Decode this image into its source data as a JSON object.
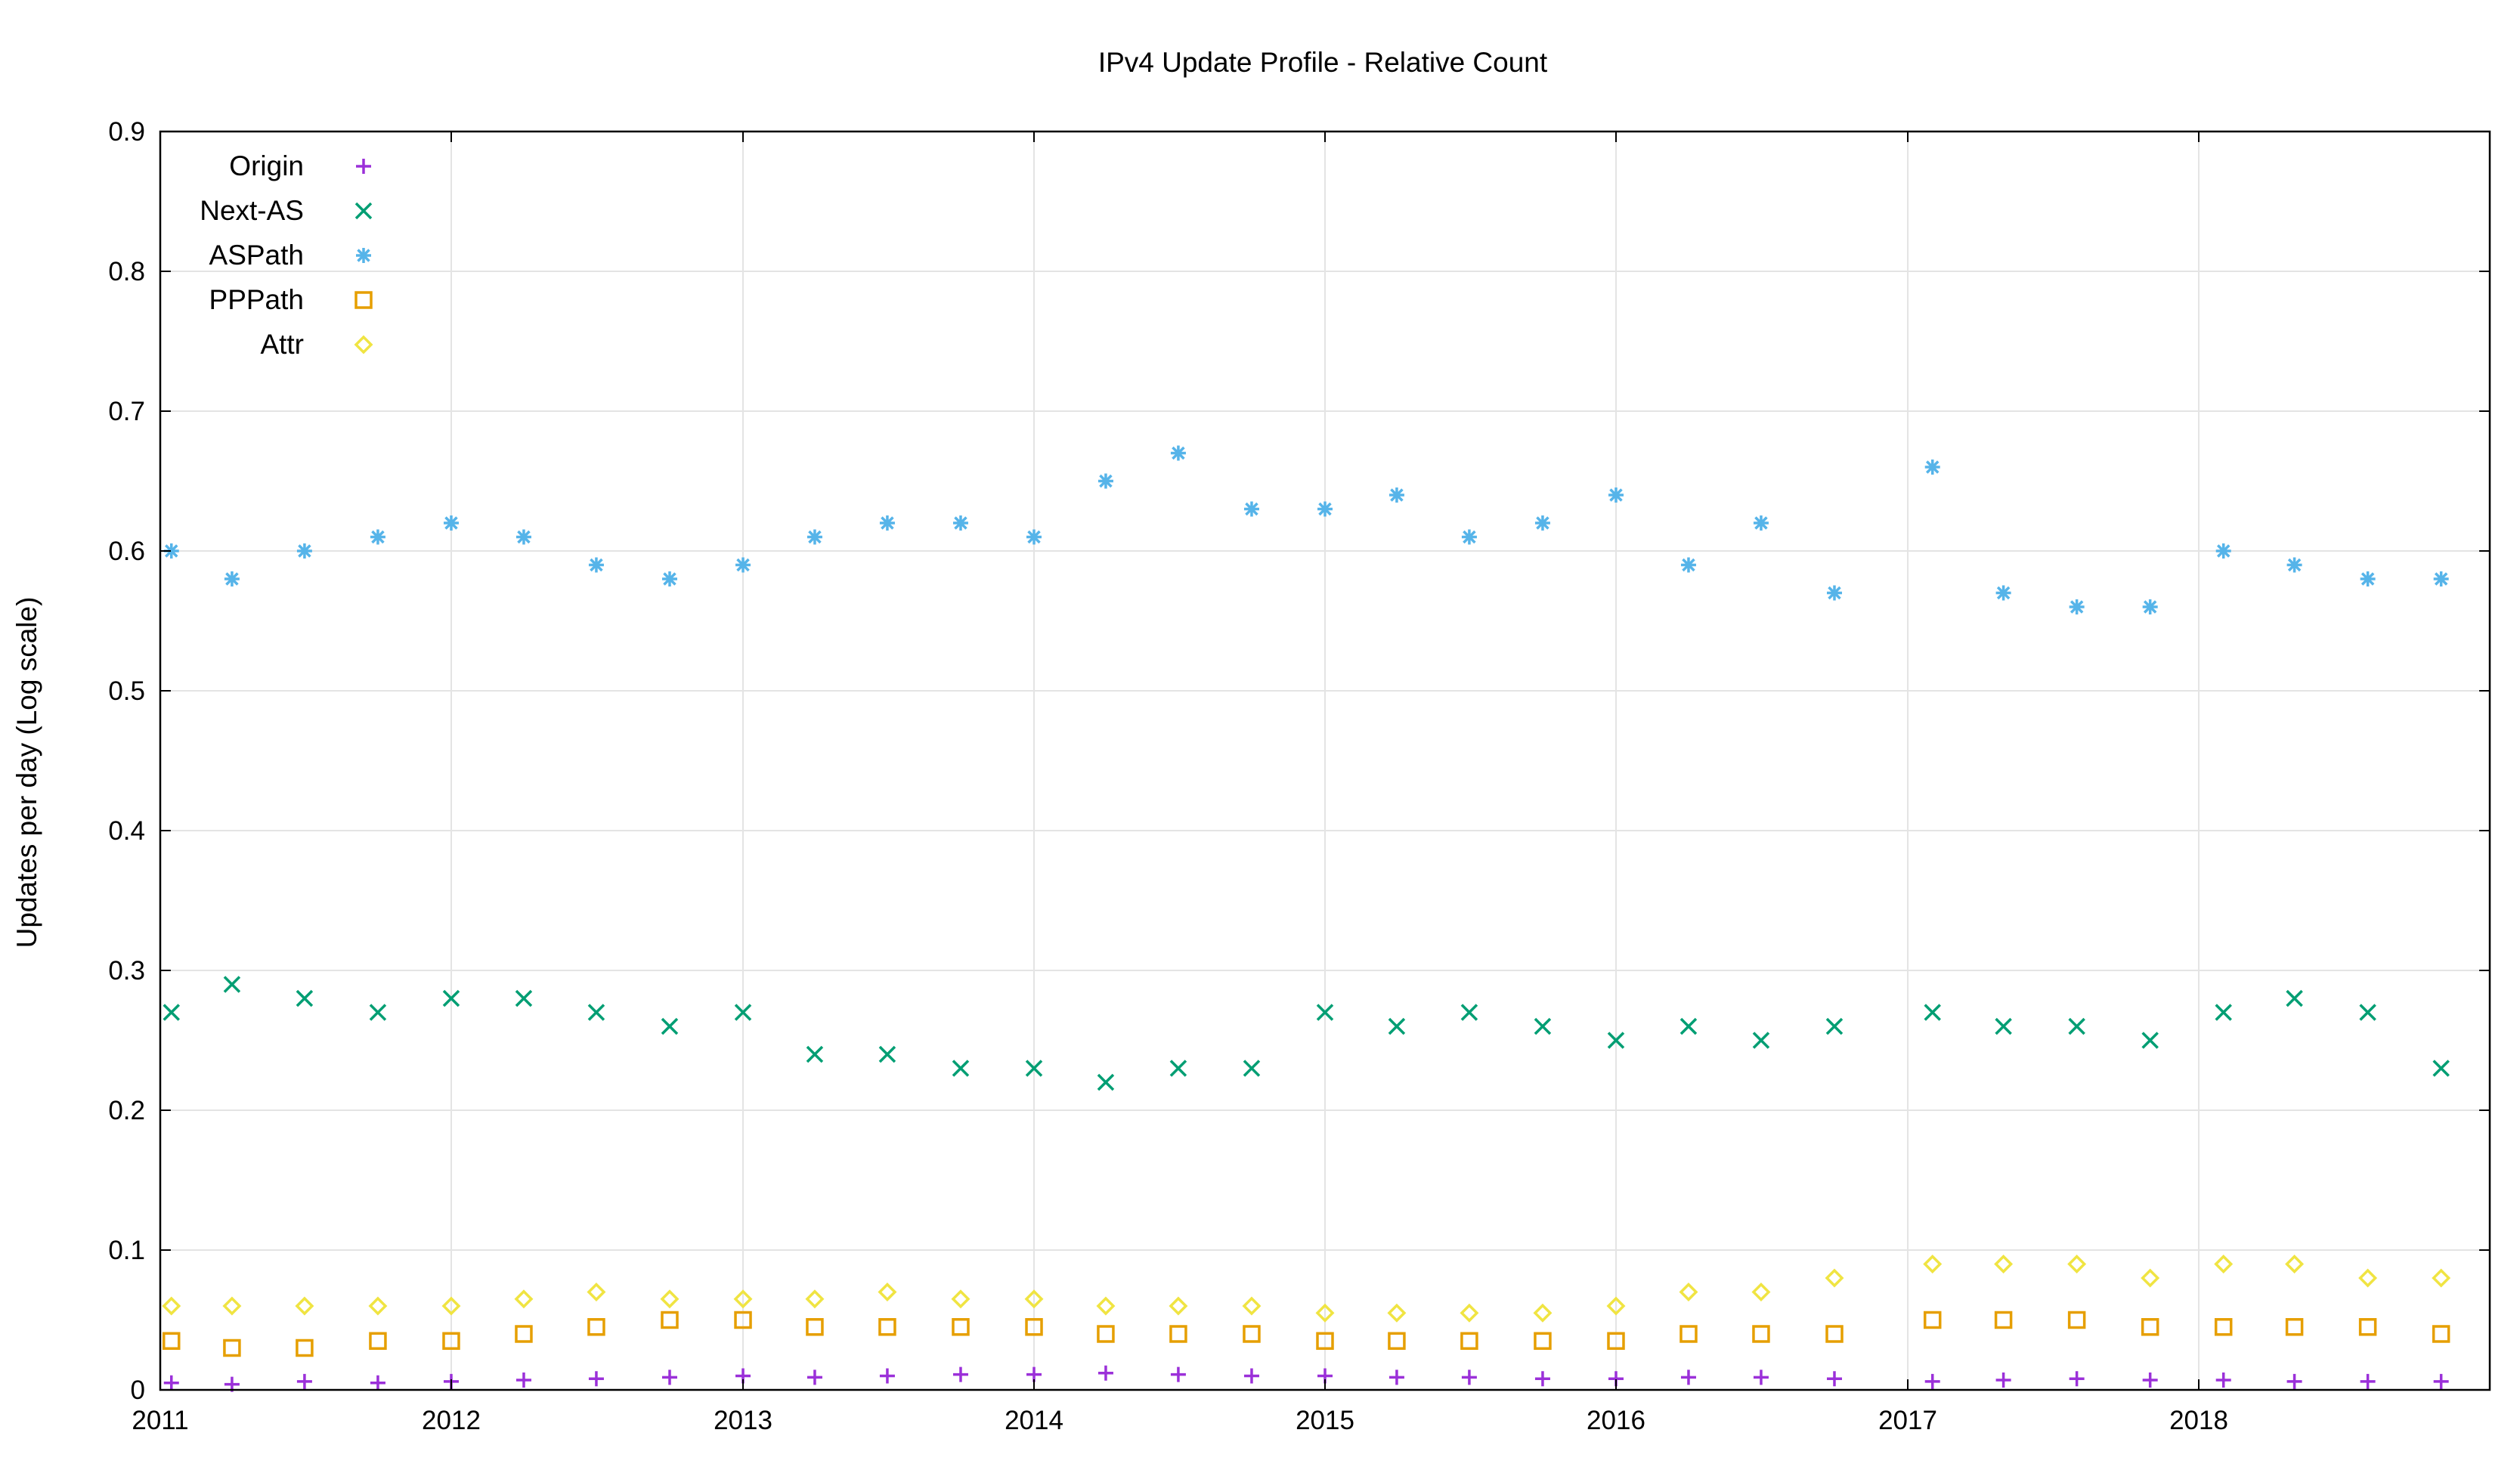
{
  "chart_data": {
    "type": "scatter",
    "title": "IPv4 Update Profile - Relative Count",
    "xlabel": "",
    "ylabel": "Updates per day (Log scale)",
    "xlim": [
      "2011-01-01",
      "2019-01-01"
    ],
    "ylim": [
      0,
      0.9
    ],
    "x_ticks": [
      "2011",
      "2012",
      "2013",
      "2014",
      "2015",
      "2016",
      "2017",
      "2018"
    ],
    "y_ticks": [
      "0",
      "0.1",
      "0.2",
      "0.3",
      "0.4",
      "0.5",
      "0.6",
      "0.7",
      "0.8",
      "0.9"
    ],
    "grid": true,
    "legend_position": "top-left",
    "data_gap": [
      "2016-12-01",
      "2017-01-01"
    ],
    "series": [
      {
        "name": "Origin",
        "marker": "plus",
        "color": "#9B30D9",
        "points": [
          [
            "2011-01-15",
            0.005
          ],
          [
            "2011-04-01",
            0.004
          ],
          [
            "2011-07-01",
            0.006
          ],
          [
            "2011-10-01",
            0.005
          ],
          [
            "2012-01-01",
            0.006
          ],
          [
            "2012-04-01",
            0.007
          ],
          [
            "2012-07-01",
            0.008
          ],
          [
            "2012-10-01",
            0.009
          ],
          [
            "2013-01-01",
            0.01
          ],
          [
            "2013-04-01",
            0.009
          ],
          [
            "2013-07-01",
            0.01
          ],
          [
            "2013-10-01",
            0.011
          ],
          [
            "2014-01-01",
            0.011
          ],
          [
            "2014-04-01",
            0.012
          ],
          [
            "2014-07-01",
            0.011
          ],
          [
            "2014-10-01",
            0.01
          ],
          [
            "2015-01-01",
            0.01
          ],
          [
            "2015-04-01",
            0.009
          ],
          [
            "2015-07-01",
            0.009
          ],
          [
            "2015-10-01",
            0.008
          ],
          [
            "2016-01-01",
            0.008
          ],
          [
            "2016-04-01",
            0.009
          ],
          [
            "2016-07-01",
            0.009
          ],
          [
            "2016-10-01",
            0.008
          ],
          [
            "2017-02-01",
            0.006
          ],
          [
            "2017-05-01",
            0.007
          ],
          [
            "2017-08-01",
            0.008
          ],
          [
            "2017-11-01",
            0.007
          ],
          [
            "2018-02-01",
            0.007
          ],
          [
            "2018-05-01",
            0.006
          ],
          [
            "2018-08-01",
            0.006
          ],
          [
            "2018-11-01",
            0.006
          ]
        ]
      },
      {
        "name": "Next-AS",
        "marker": "cross",
        "color": "#009E73",
        "points": [
          [
            "2011-01-15",
            0.27
          ],
          [
            "2011-04-01",
            0.29
          ],
          [
            "2011-07-01",
            0.28
          ],
          [
            "2011-10-01",
            0.27
          ],
          [
            "2012-01-01",
            0.28
          ],
          [
            "2012-04-01",
            0.28
          ],
          [
            "2012-07-01",
            0.27
          ],
          [
            "2012-10-01",
            0.26
          ],
          [
            "2013-01-01",
            0.27
          ],
          [
            "2013-04-01",
            0.24
          ],
          [
            "2013-07-01",
            0.24
          ],
          [
            "2013-10-01",
            0.23
          ],
          [
            "2014-01-01",
            0.23
          ],
          [
            "2014-04-01",
            0.22
          ],
          [
            "2014-07-01",
            0.23
          ],
          [
            "2014-10-01",
            0.23
          ],
          [
            "2015-01-01",
            0.27
          ],
          [
            "2015-04-01",
            0.26
          ],
          [
            "2015-07-01",
            0.27
          ],
          [
            "2015-10-01",
            0.26
          ],
          [
            "2016-01-01",
            0.25
          ],
          [
            "2016-04-01",
            0.26
          ],
          [
            "2016-07-01",
            0.25
          ],
          [
            "2016-10-01",
            0.26
          ],
          [
            "2017-02-01",
            0.27
          ],
          [
            "2017-05-01",
            0.26
          ],
          [
            "2017-08-01",
            0.26
          ],
          [
            "2017-11-01",
            0.25
          ],
          [
            "2018-02-01",
            0.27
          ],
          [
            "2018-05-01",
            0.28
          ],
          [
            "2018-08-01",
            0.27
          ],
          [
            "2018-11-01",
            0.23
          ]
        ]
      },
      {
        "name": "ASPath",
        "marker": "star",
        "color": "#56B4E9",
        "points": [
          [
            "2011-01-15",
            0.6
          ],
          [
            "2011-04-01",
            0.58
          ],
          [
            "2011-07-01",
            0.6
          ],
          [
            "2011-10-01",
            0.61
          ],
          [
            "2012-01-01",
            0.62
          ],
          [
            "2012-04-01",
            0.61
          ],
          [
            "2012-07-01",
            0.59
          ],
          [
            "2012-10-01",
            0.58
          ],
          [
            "2013-01-01",
            0.59
          ],
          [
            "2013-04-01",
            0.61
          ],
          [
            "2013-07-01",
            0.62
          ],
          [
            "2013-10-01",
            0.62
          ],
          [
            "2014-01-01",
            0.61
          ],
          [
            "2014-04-01",
            0.65
          ],
          [
            "2014-07-01",
            0.67
          ],
          [
            "2014-10-01",
            0.63
          ],
          [
            "2015-01-01",
            0.63
          ],
          [
            "2015-04-01",
            0.64
          ],
          [
            "2015-07-01",
            0.61
          ],
          [
            "2015-10-01",
            0.62
          ],
          [
            "2016-01-01",
            0.64
          ],
          [
            "2016-04-01",
            0.59
          ],
          [
            "2016-07-01",
            0.62
          ],
          [
            "2016-10-01",
            0.57
          ],
          [
            "2017-02-01",
            0.66
          ],
          [
            "2017-05-01",
            0.57
          ],
          [
            "2017-08-01",
            0.56
          ],
          [
            "2017-11-01",
            0.56
          ],
          [
            "2018-02-01",
            0.6
          ],
          [
            "2018-05-01",
            0.59
          ],
          [
            "2018-08-01",
            0.58
          ],
          [
            "2018-11-01",
            0.58
          ]
        ]
      },
      {
        "name": "PPPath",
        "marker": "square",
        "color": "#E69F00",
        "points": [
          [
            "2011-01-15",
            0.035
          ],
          [
            "2011-04-01",
            0.03
          ],
          [
            "2011-07-01",
            0.03
          ],
          [
            "2011-10-01",
            0.035
          ],
          [
            "2012-01-01",
            0.035
          ],
          [
            "2012-04-01",
            0.04
          ],
          [
            "2012-07-01",
            0.045
          ],
          [
            "2012-10-01",
            0.05
          ],
          [
            "2013-01-01",
            0.05
          ],
          [
            "2013-04-01",
            0.045
          ],
          [
            "2013-07-01",
            0.045
          ],
          [
            "2013-10-01",
            0.045
          ],
          [
            "2014-01-01",
            0.045
          ],
          [
            "2014-04-01",
            0.04
          ],
          [
            "2014-07-01",
            0.04
          ],
          [
            "2014-10-01",
            0.04
          ],
          [
            "2015-01-01",
            0.035
          ],
          [
            "2015-04-01",
            0.035
          ],
          [
            "2015-07-01",
            0.035
          ],
          [
            "2015-10-01",
            0.035
          ],
          [
            "2016-01-01",
            0.035
          ],
          [
            "2016-04-01",
            0.04
          ],
          [
            "2016-07-01",
            0.04
          ],
          [
            "2016-10-01",
            0.04
          ],
          [
            "2017-02-01",
            0.05
          ],
          [
            "2017-05-01",
            0.05
          ],
          [
            "2017-08-01",
            0.05
          ],
          [
            "2017-11-01",
            0.045
          ],
          [
            "2018-02-01",
            0.045
          ],
          [
            "2018-05-01",
            0.045
          ],
          [
            "2018-08-01",
            0.045
          ],
          [
            "2018-11-01",
            0.04
          ]
        ]
      },
      {
        "name": "Attr",
        "marker": "diamond",
        "color": "#F0E442",
        "points": [
          [
            "2011-01-15",
            0.06
          ],
          [
            "2011-04-01",
            0.06
          ],
          [
            "2011-07-01",
            0.06
          ],
          [
            "2011-10-01",
            0.06
          ],
          [
            "2012-01-01",
            0.06
          ],
          [
            "2012-04-01",
            0.065
          ],
          [
            "2012-07-01",
            0.07
          ],
          [
            "2012-10-01",
            0.065
          ],
          [
            "2013-01-01",
            0.065
          ],
          [
            "2013-04-01",
            0.065
          ],
          [
            "2013-07-01",
            0.07
          ],
          [
            "2013-10-01",
            0.065
          ],
          [
            "2014-01-01",
            0.065
          ],
          [
            "2014-04-01",
            0.06
          ],
          [
            "2014-07-01",
            0.06
          ],
          [
            "2014-10-01",
            0.06
          ],
          [
            "2015-01-01",
            0.055
          ],
          [
            "2015-04-01",
            0.055
          ],
          [
            "2015-07-01",
            0.055
          ],
          [
            "2015-10-01",
            0.055
          ],
          [
            "2016-01-01",
            0.06
          ],
          [
            "2016-04-01",
            0.07
          ],
          [
            "2016-07-01",
            0.07
          ],
          [
            "2016-10-01",
            0.08
          ],
          [
            "2017-02-01",
            0.09
          ],
          [
            "2017-05-01",
            0.09
          ],
          [
            "2017-08-01",
            0.09
          ],
          [
            "2017-11-01",
            0.08
          ],
          [
            "2018-02-01",
            0.09
          ],
          [
            "2018-05-01",
            0.09
          ],
          [
            "2018-08-01",
            0.08
          ],
          [
            "2018-11-01",
            0.08
          ]
        ]
      }
    ]
  }
}
